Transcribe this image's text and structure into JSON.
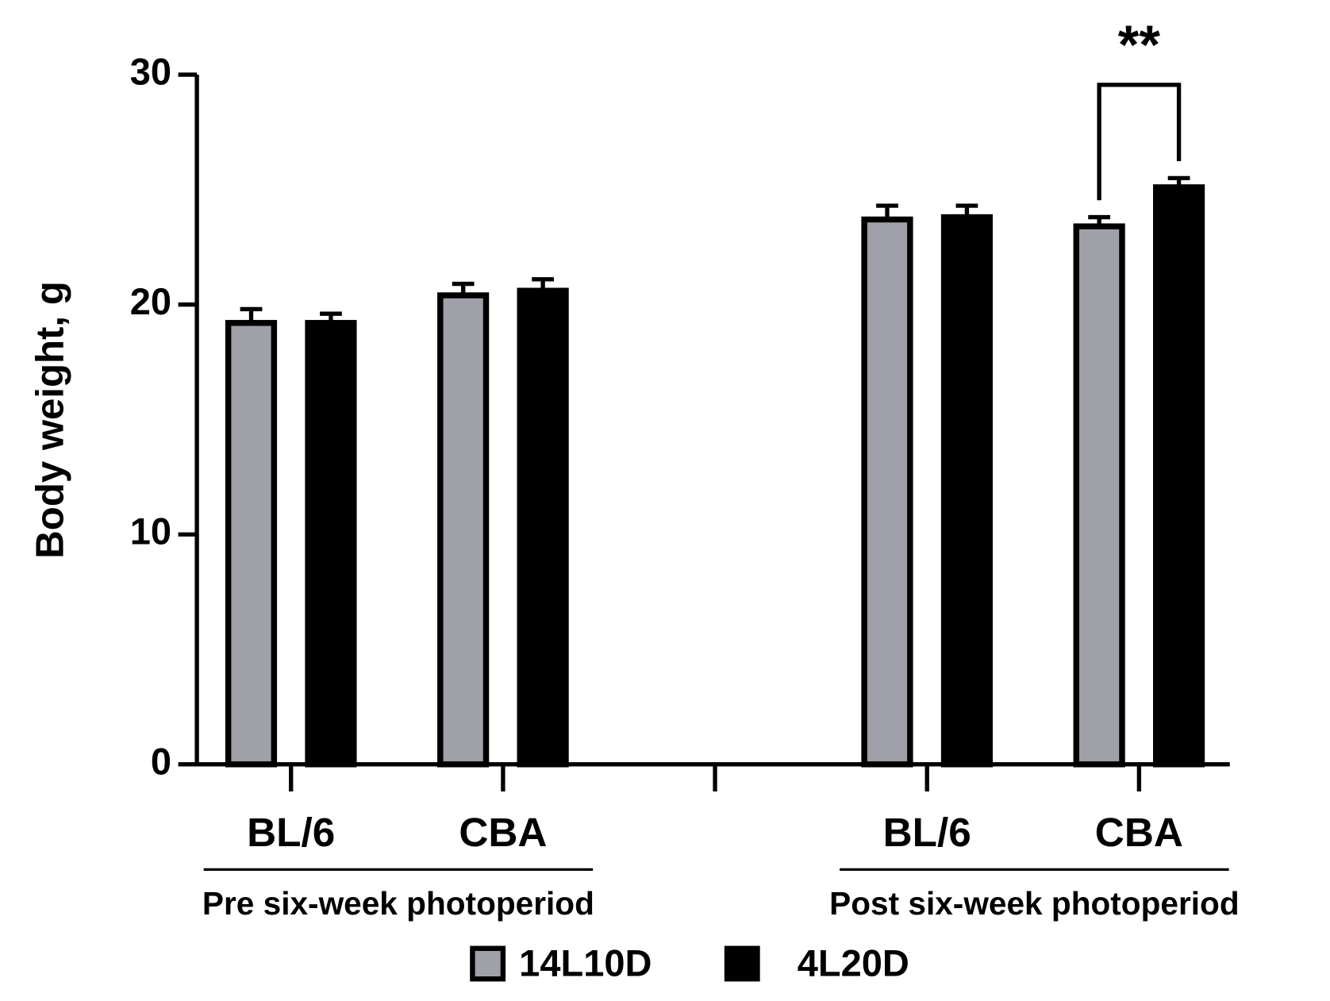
{
  "chart_data": {
    "type": "bar",
    "y_label": "Body weight, g",
    "categories": [
      "BL/6",
      "CBA",
      null,
      "BL/6",
      "CBA"
    ],
    "groups": [
      "Pre six-week photoperiod",
      "Post six-week photoperiod"
    ],
    "series": [
      {
        "name": "14L10D",
        "color": "#a0a0a8",
        "values": [
          19.2,
          20.4,
          null,
          23.7,
          23.4
        ],
        "errors": [
          0.6,
          0.5,
          null,
          0.6,
          0.4
        ]
      },
      {
        "name": "4L20D",
        "color": "#000000",
        "values": [
          19.2,
          20.6,
          null,
          23.8,
          25.1
        ],
        "errors": [
          0.4,
          0.5,
          null,
          0.5,
          0.4
        ]
      }
    ],
    "ylim": [
      0,
      30
    ],
    "yticks": [
      0,
      10,
      20,
      30
    ],
    "annotation": {
      "text": "**",
      "color": "#e8141c"
    }
  }
}
